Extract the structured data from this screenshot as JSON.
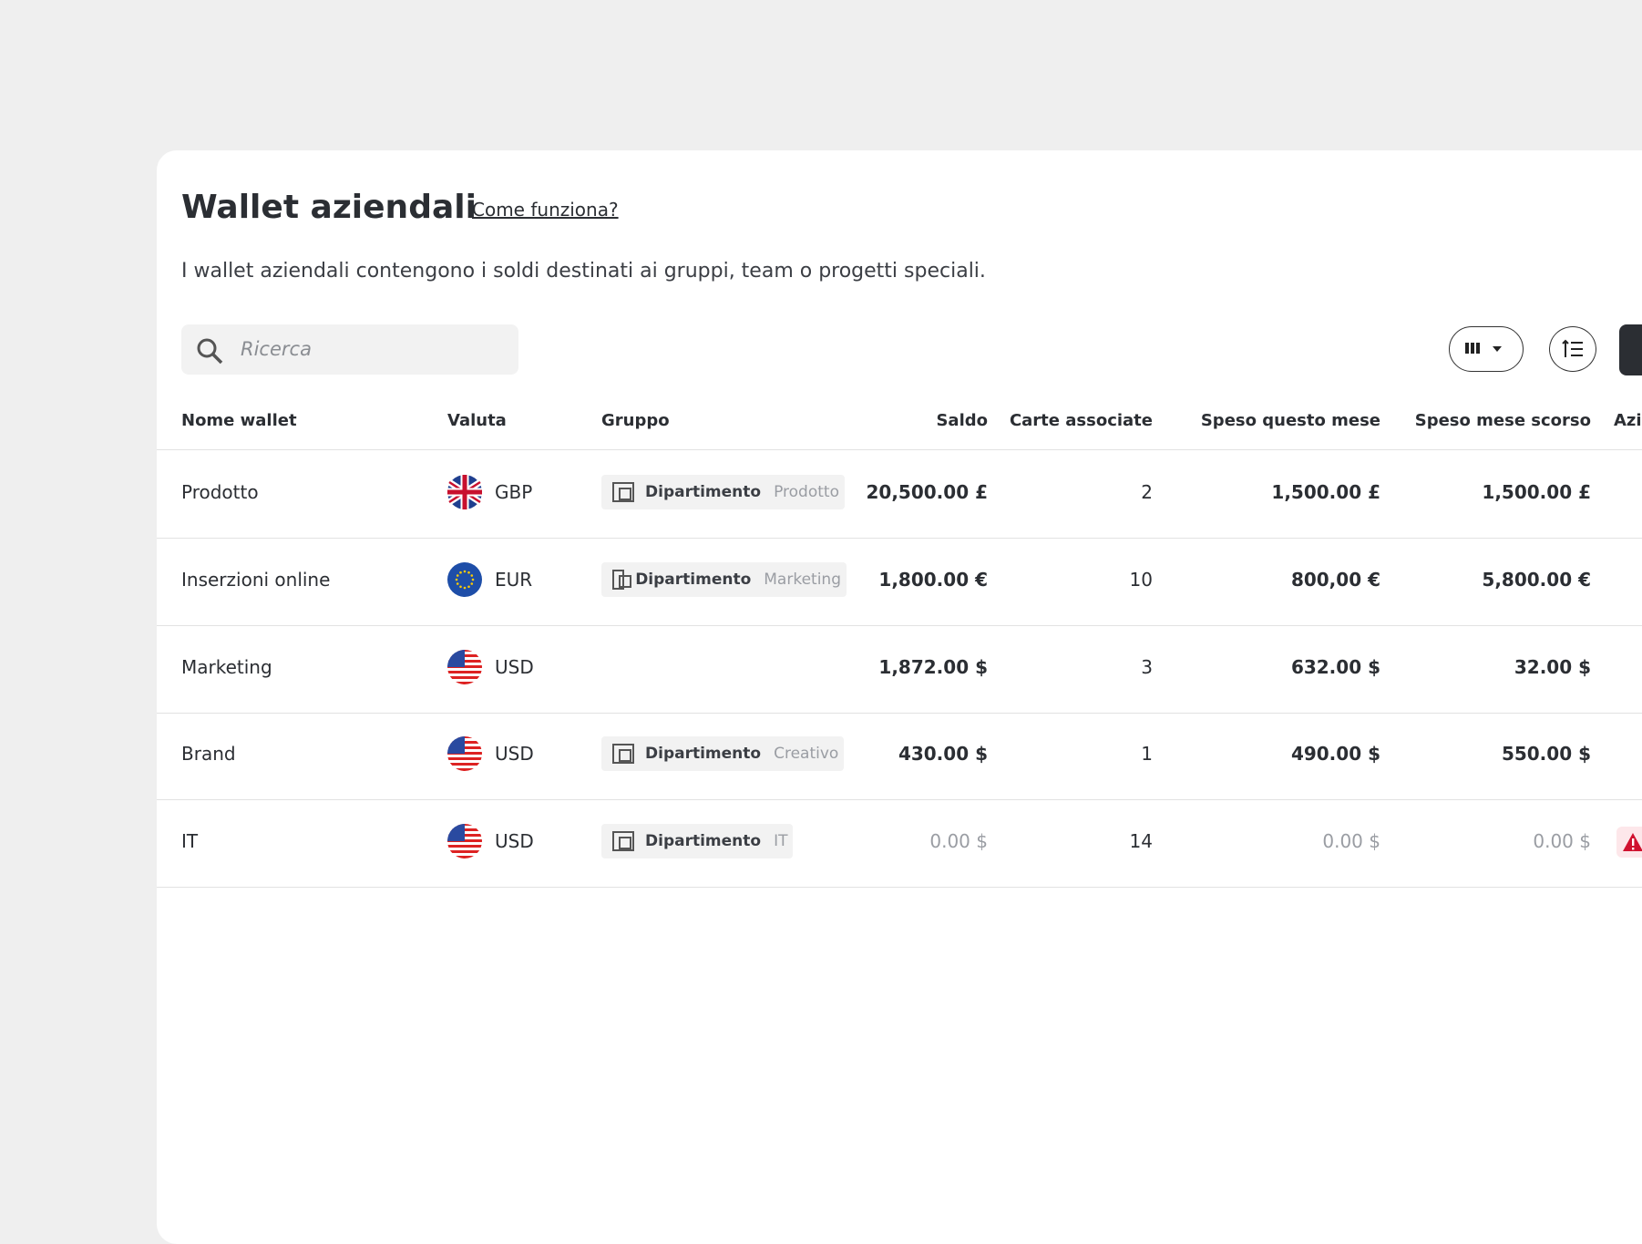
{
  "header": {
    "title": "Wallet aziendali",
    "help_link": "Come funziona?",
    "description": "I wallet aziendali contengono i soldi destinati ai gruppi, team o progetti speciali."
  },
  "search": {
    "placeholder": "Ricerca"
  },
  "table": {
    "columns": [
      "Nome wallet",
      "Valuta",
      "Gruppo",
      "Saldo",
      "Carte associate",
      "Speso questo mese",
      "Speso mese scorso",
      "Azioni"
    ],
    "group_prefix": "Dipartimento",
    "rows": [
      {
        "name": "Prodotto",
        "currency": "GBP",
        "group": "Prodotto",
        "balance": "20,500.00 £",
        "cards": "2",
        "spent_this_month": "1,500.00 £",
        "spent_last_month": "1,500.00 £"
      },
      {
        "name": "Inserzioni online",
        "currency": "EUR",
        "group": "Marketing",
        "balance": "1,800.00 €",
        "cards": "10",
        "spent_this_month": "800,00 €",
        "spent_last_month": "5,800.00 €"
      },
      {
        "name": "Marketing",
        "currency": "USD",
        "group": null,
        "balance": "1,872.00 $",
        "cards": "3",
        "spent_this_month": "632.00 $",
        "spent_last_month": "32.00 $"
      },
      {
        "name": "Brand",
        "currency": "USD",
        "group": "Creativo",
        "balance": "430.00 $",
        "cards": "1",
        "spent_this_month": "490.00 $",
        "spent_last_month": "550.00 $"
      },
      {
        "name": "IT",
        "currency": "USD",
        "group": "IT",
        "balance": "0.00 $",
        "cards": "14",
        "spent_this_month": "0.00 $",
        "spent_last_month": "0.00 $"
      }
    ]
  }
}
